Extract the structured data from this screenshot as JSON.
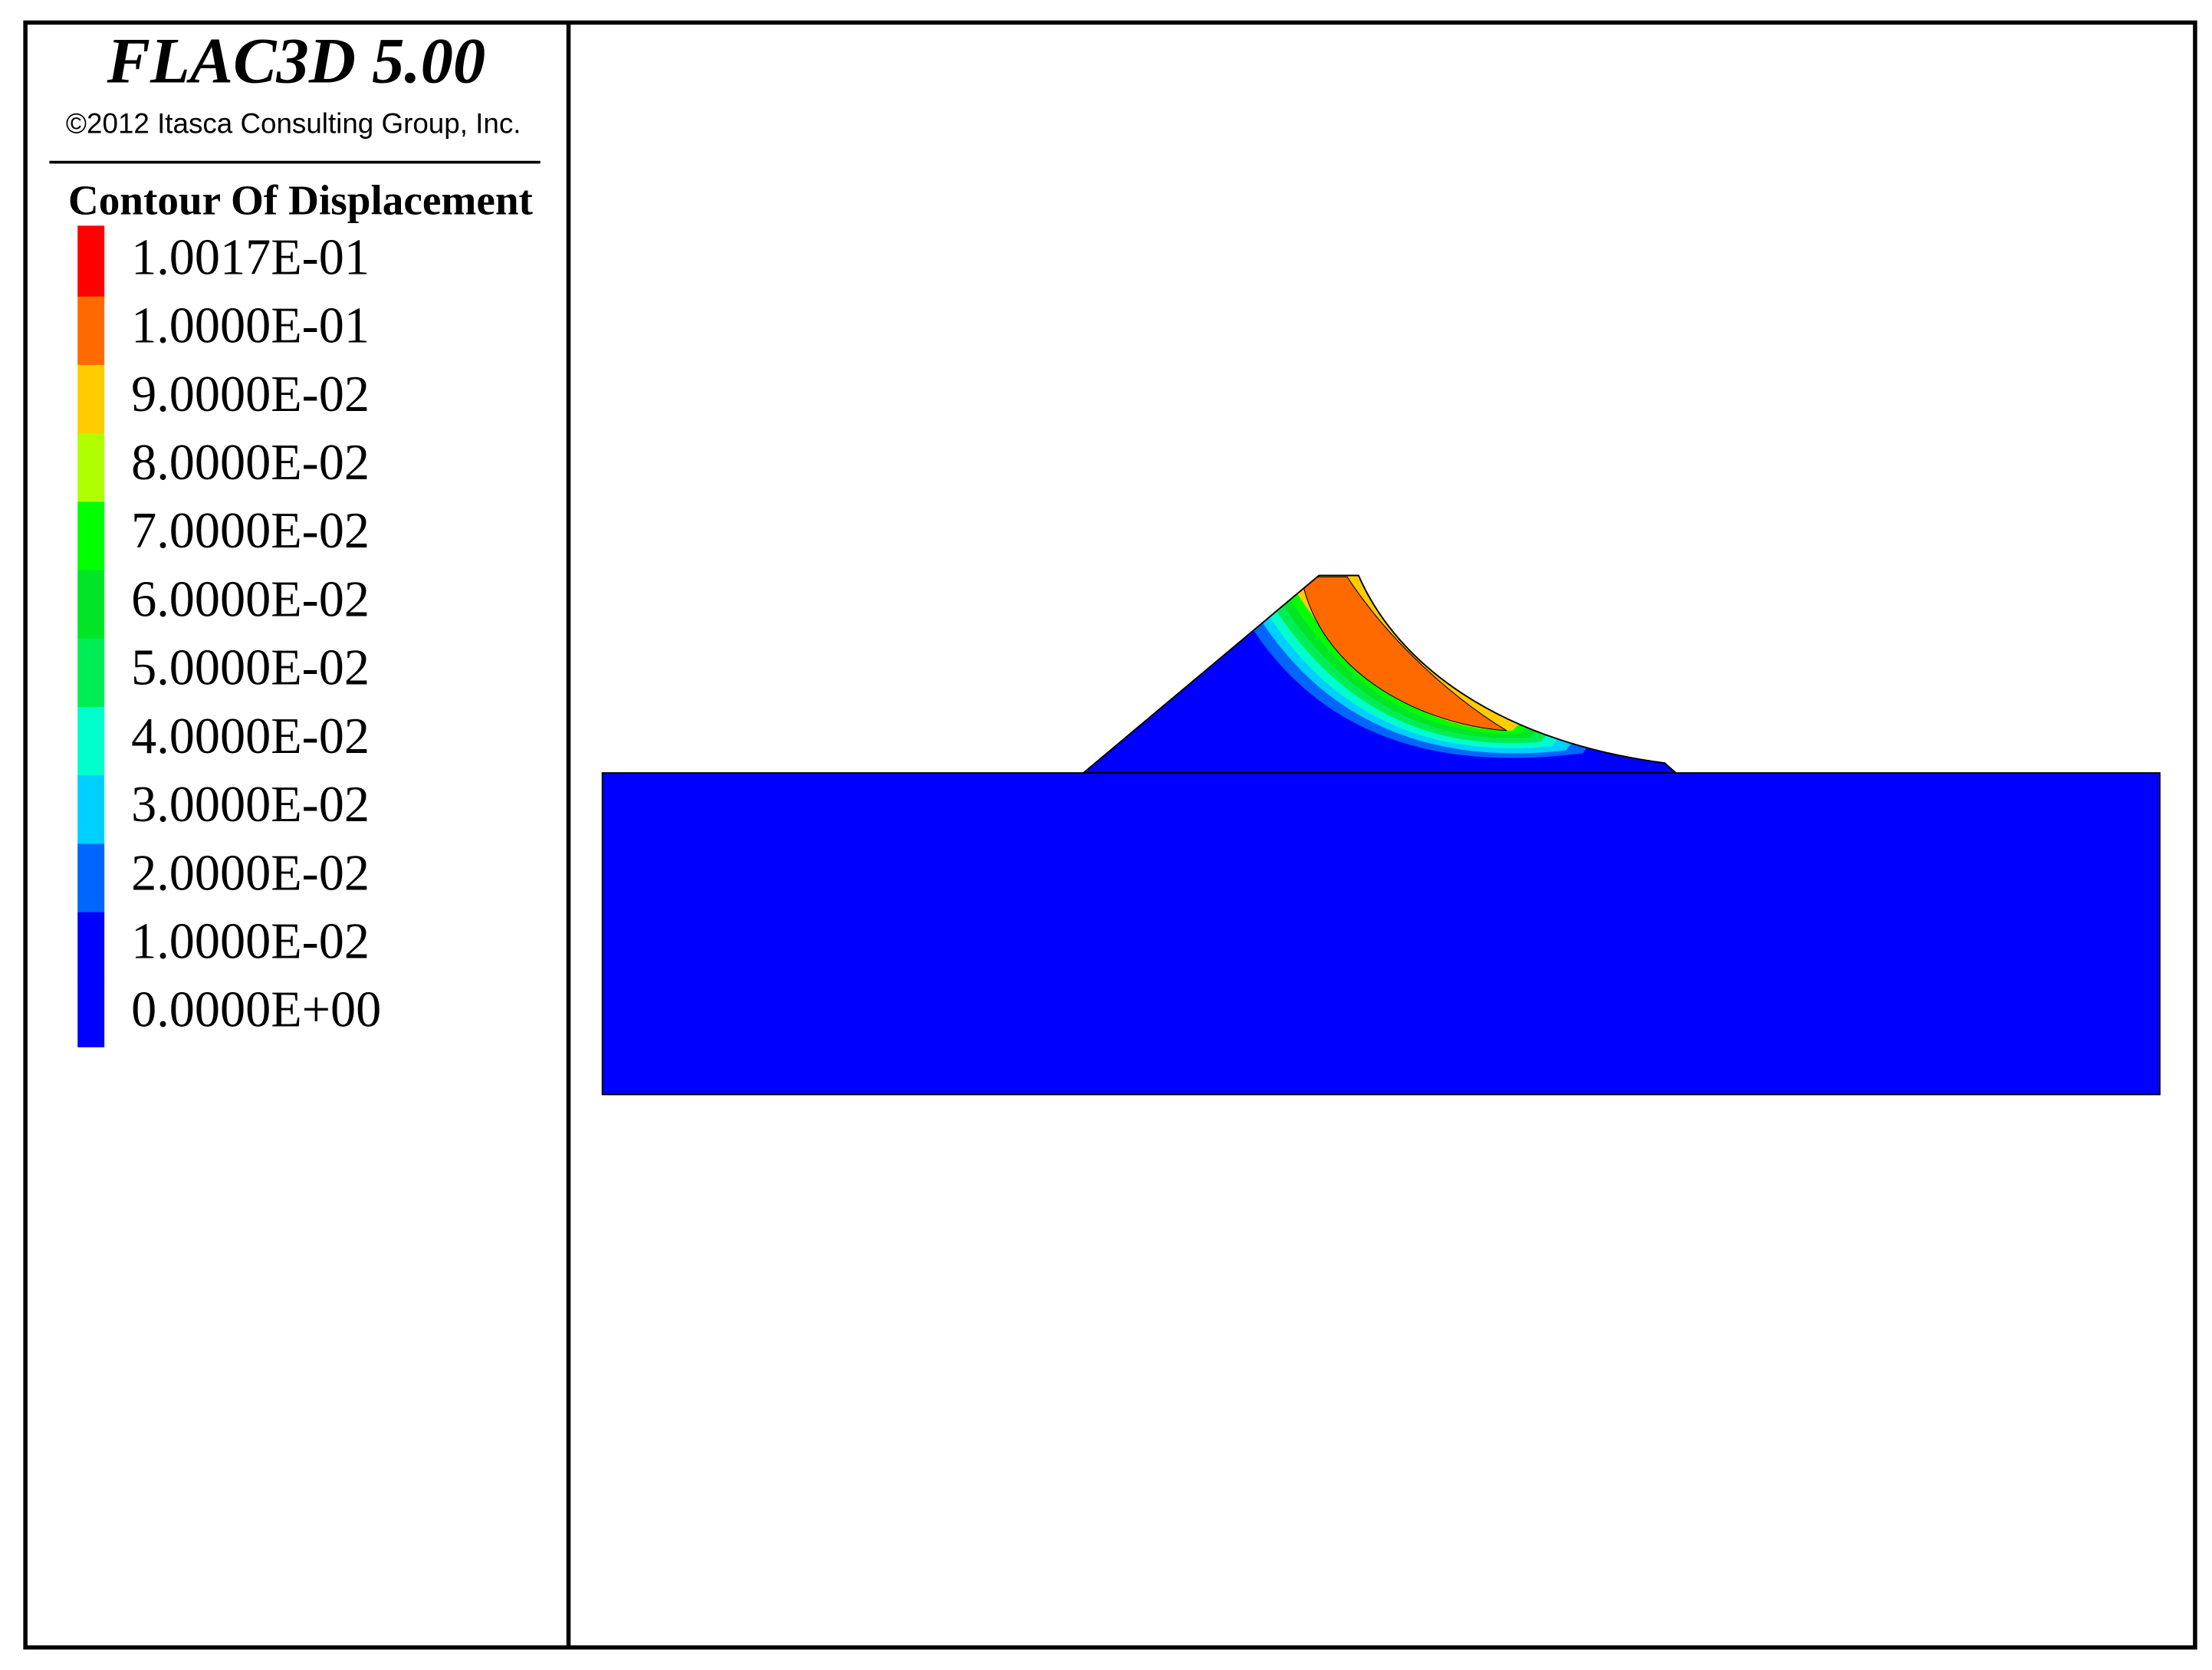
{
  "header": {
    "title": "FLAC3D 5.00",
    "copyright": "©2012 Itasca Consulting Group, Inc."
  },
  "legend": {
    "title": "Contour Of Displacement",
    "levels": [
      {
        "label": "1.0017E-01",
        "color": "#ff0000"
      },
      {
        "label": "1.0000E-01",
        "color": "#ff6a00"
      },
      {
        "label": "9.0000E-02",
        "color": "#ffcc00"
      },
      {
        "label": "8.0000E-02",
        "color": "#b0ff00"
      },
      {
        "label": "7.0000E-02",
        "color": "#00ff00"
      },
      {
        "label": "6.0000E-02",
        "color": "#00e626"
      },
      {
        "label": "5.0000E-02",
        "color": "#00ee55"
      },
      {
        "label": "4.0000E-02",
        "color": "#00ffcc"
      },
      {
        "label": "3.0000E-02",
        "color": "#00d0ff"
      },
      {
        "label": "2.0000E-02",
        "color": "#0066ff"
      },
      {
        "label": "1.0000E-02",
        "color": "#0000ff"
      },
      {
        "label": "0.0000E+00",
        "color": "#0000ff"
      }
    ]
  }
}
